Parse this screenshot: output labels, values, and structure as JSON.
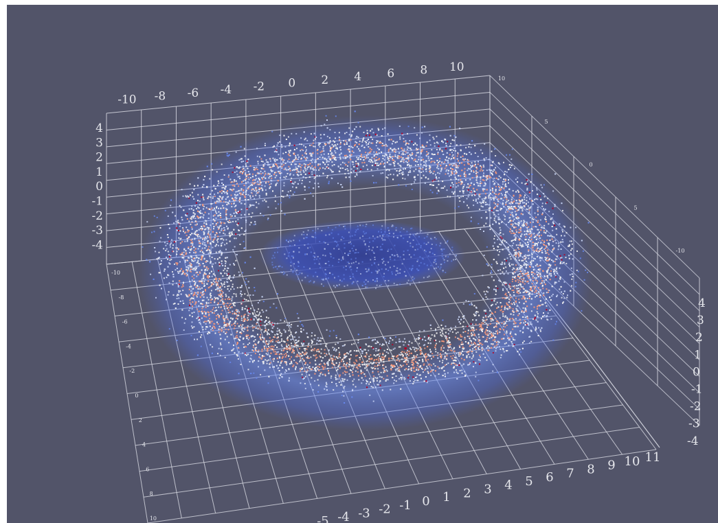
{
  "viewer": {
    "background": "#525469",
    "grid_color": "#d9dbe4",
    "colormap": [
      "#3b4cc0",
      "#6788ee",
      "#c8d4f4",
      "#f2f2f2",
      "#f4987a",
      "#b40426"
    ]
  },
  "axes": {
    "top_x_ticks": [
      "-10",
      "-8",
      "-6",
      "-4",
      "-2",
      "0",
      "2",
      "4",
      "6",
      "8",
      "10"
    ],
    "left_z_ticks": [
      "4",
      "3",
      "2",
      "1",
      "0",
      "-1",
      "-2",
      "-3",
      "-4"
    ],
    "left_y_ticks": [
      "-10",
      "-8",
      "-6",
      "-4",
      "-2",
      "0",
      "2",
      "4",
      "6",
      "8",
      "10"
    ],
    "back_y_ticks": [
      "10",
      "5",
      "0",
      "5",
      "-10"
    ],
    "right_z_ticks": [
      "4",
      "3",
      "2",
      "1",
      "0",
      "-1",
      "-2",
      "-3",
      "-4"
    ],
    "bottom_x_ticks": [
      "-5",
      "-4",
      "-3",
      "-2",
      "-1",
      "0",
      "1",
      "2",
      "3",
      "4",
      "5",
      "6",
      "7",
      "8",
      "9",
      "10",
      "11"
    ]
  }
}
